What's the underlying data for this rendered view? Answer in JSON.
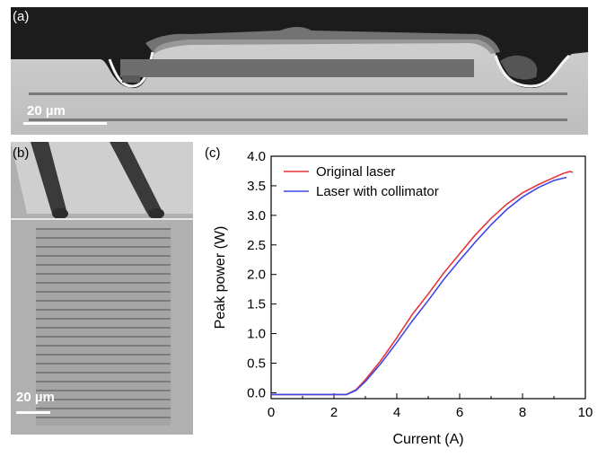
{
  "panels": {
    "a": {
      "label": "(a)",
      "scale_bar": "20 µm"
    },
    "b": {
      "label": "(b)",
      "scale_bar": "20 µm"
    },
    "c": {
      "label": "(c)"
    }
  },
  "chart_data": {
    "type": "line",
    "xlabel": "Current (A)",
    "ylabel": "Peak power (W)",
    "xlim": [
      0,
      10
    ],
    "ylim": [
      -0.1,
      4.0
    ],
    "xticks": [
      0,
      2,
      4,
      6,
      8,
      10
    ],
    "yticks": [
      0.0,
      0.5,
      1.0,
      1.5,
      2.0,
      2.5,
      3.0,
      3.5,
      4.0
    ],
    "ytick_labels": [
      "0.0",
      "0.5",
      "1.0",
      "1.5",
      "2.0",
      "2.5",
      "3.0",
      "3.5",
      "4.0"
    ],
    "xtick_labels": [
      "0",
      "2",
      "4",
      "6",
      "8",
      "10"
    ],
    "legend_position": "top-left",
    "grid": false,
    "series": [
      {
        "name": "Original laser",
        "color": "#e8343a",
        "x": [
          0,
          2.4,
          2.7,
          3.0,
          3.5,
          4.0,
          4.5,
          5.0,
          5.5,
          6.0,
          6.5,
          7.0,
          7.5,
          8.0,
          8.5,
          9.0,
          9.3,
          9.5,
          9.6
        ],
        "y": [
          -0.03,
          -0.03,
          0.05,
          0.22,
          0.55,
          0.93,
          1.33,
          1.67,
          2.03,
          2.35,
          2.67,
          2.95,
          3.19,
          3.38,
          3.52,
          3.64,
          3.71,
          3.74,
          3.73
        ]
      },
      {
        "name": "Laser with collimator",
        "color": "#3f48e6",
        "x": [
          0,
          2.4,
          2.7,
          3.0,
          3.5,
          4.0,
          4.5,
          5.0,
          5.5,
          6.0,
          6.5,
          7.0,
          7.5,
          8.0,
          8.5,
          9.0,
          9.3,
          9.4
        ],
        "y": [
          -0.03,
          -0.03,
          0.04,
          0.19,
          0.5,
          0.85,
          1.22,
          1.56,
          1.92,
          2.24,
          2.55,
          2.84,
          3.1,
          3.31,
          3.47,
          3.59,
          3.63,
          3.64
        ]
      }
    ]
  }
}
